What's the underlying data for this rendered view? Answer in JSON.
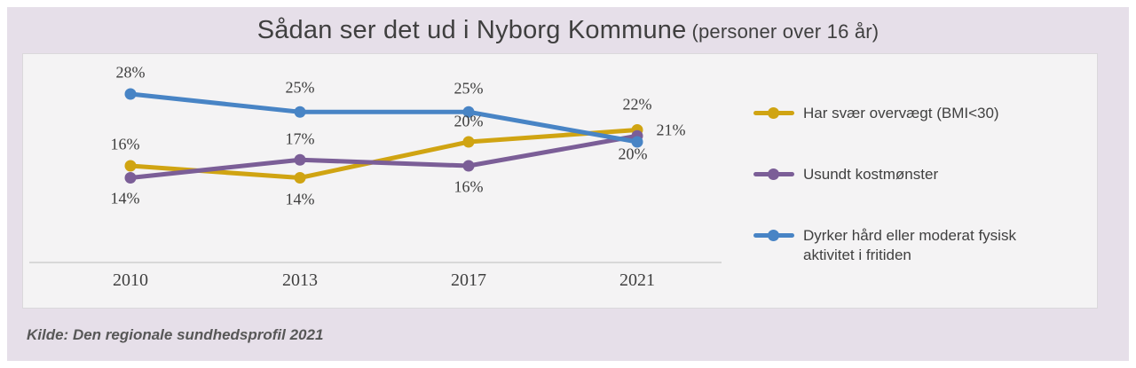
{
  "title": {
    "main": "Sådan ser det ud i Nyborg Kommune",
    "suffix": "(personer over 16 år)"
  },
  "source": "Kilde: Den regionale sundhedsprofil 2021",
  "colors": {
    "background": "#e6dfe9",
    "panel": "#f4f3f4",
    "text": "#3f3f3f",
    "axis": "#cfcfcf",
    "series_gold": "#d0a412",
    "series_purple": "#7b5e97",
    "series_blue": "#4884c5"
  },
  "chart_data": {
    "type": "line",
    "categories": [
      "2010",
      "2013",
      "2017",
      "2021"
    ],
    "series": [
      {
        "name": "Har svær overvægt (BMI<30)",
        "color": "#d0a412",
        "values": [
          16,
          14,
          20,
          22
        ],
        "data_labels": [
          "16%",
          "14%",
          "20%",
          "22%"
        ],
        "label_offsets": [
          [
            -6,
            -24
          ],
          [
            0,
            24
          ],
          [
            0,
            -23
          ],
          [
            0,
            -29
          ]
        ]
      },
      {
        "name": "Usundt kostmønster",
        "color": "#7b5e97",
        "values": [
          14,
          17,
          16,
          21
        ],
        "data_labels": [
          "14%",
          "17%",
          "16%",
          "21%"
        ],
        "label_offsets": [
          [
            -6,
            23
          ],
          [
            0,
            -23
          ],
          [
            0,
            24
          ],
          [
            38,
            -6
          ]
        ]
      },
      {
        "name": "Dyrker hård eller moderat fysisk aktivitet i fritiden",
        "color": "#4884c5",
        "values": [
          28,
          25,
          25,
          20
        ],
        "data_labels": [
          "28%",
          "25%",
          "25%",
          "20%"
        ],
        "label_offsets": [
          [
            0,
            -24
          ],
          [
            0,
            -27
          ],
          [
            0,
            -26
          ],
          [
            -5,
            14
          ]
        ]
      }
    ],
    "title": "Sådan ser det ud i Nyborg Kommune (personer over 16 år)",
    "xlabel": "",
    "ylabel": "",
    "value_suffix": "%",
    "ylim": [
      10,
      30
    ],
    "grid": false,
    "legend_position": "right",
    "x_axis_line": true
  }
}
